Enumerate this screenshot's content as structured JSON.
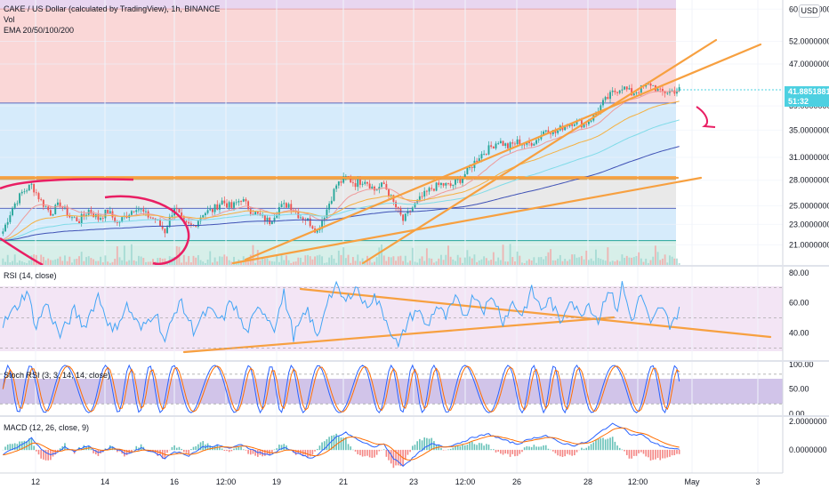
{
  "legend": {
    "title": "CAKE / US Dollar (calculated by TradingView), 1h, BINANCE",
    "vol": "Vol",
    "ema": "EMA 20/50/100/200",
    "rsi": "RSI (14, close)",
    "stoch": "Stoch RSI (3, 3, 14, 14, close)",
    "macd": "MACD (12, 26, close, 9)"
  },
  "currency": "USD",
  "last_price": {
    "value": "41.8851881",
    "countdown": "51:32"
  },
  "colors": {
    "up": "#26a69a",
    "down": "#ef5350",
    "trend": "#f7a040",
    "ema20": "#ef9a9a",
    "ema50": "#f5b041",
    "ema100": "#7fdbe8",
    "ema200": "#3f51b5",
    "rsi": "#42a5f5",
    "stoch_k": "#2962ff",
    "stoch_d": "#ff6d00",
    "macd": "#2962ff",
    "signal": "#ff6d00",
    "zone_red": "#fad7d7",
    "zone_blue": "#d6ebfb",
    "zone_grey": "#e9e9e9",
    "zone_purple": "#e8d6f0",
    "band_rsi": "#f3e5f5",
    "band_stoch": "#d1c4e9",
    "drawing_red": "#e91e63"
  },
  "chart_data": [
    {
      "type": "candlestick",
      "pane": "price",
      "y_ticks": [
        "60.0000000",
        "52.0000000",
        "47.0000000",
        "39.0000000",
        "35.0000000",
        "31.0000000",
        "28.0000000",
        "25.0000000",
        "23.0000000",
        "21.0000000"
      ],
      "y_tick_values": [
        60,
        52,
        47,
        39,
        35,
        31,
        28,
        25,
        23,
        21
      ],
      "scale": "log",
      "ylim": [
        19.2,
        62.5
      ],
      "x_ticks": [
        "12",
        "14",
        "16",
        "12:00",
        "19",
        "21",
        "23",
        "12:00",
        "26",
        "28",
        "12:00",
        "May",
        "3"
      ],
      "series": [
        {
          "name": "EMA 20"
        },
        {
          "name": "EMA 50"
        },
        {
          "name": "EMA 100"
        },
        {
          "name": "EMA 200"
        }
      ],
      "closes_anchor": [
        [
          0,
          22.3
        ],
        [
          4,
          24.8
        ],
        [
          8,
          26.5
        ],
        [
          12,
          27.4
        ],
        [
          16,
          25.5
        ],
        [
          20,
          24.2
        ],
        [
          24,
          25.2
        ],
        [
          28,
          23.8
        ],
        [
          32,
          23.4
        ],
        [
          36,
          24.5
        ],
        [
          40,
          23.6
        ],
        [
          44,
          24.4
        ],
        [
          48,
          23.1
        ],
        [
          52,
          24.0
        ],
        [
          56,
          24.9
        ],
        [
          60,
          24.0
        ],
        [
          64,
          23.5
        ],
        [
          68,
          22.3
        ],
        [
          72,
          24.9
        ],
        [
          76,
          23.0
        ],
        [
          80,
          22.8
        ],
        [
          84,
          24.2
        ],
        [
          88,
          24.5
        ],
        [
          92,
          25.5
        ],
        [
          96,
          24.8
        ],
        [
          100,
          25.8
        ],
        [
          104,
          24.5
        ],
        [
          108,
          23.8
        ],
        [
          112,
          23.3
        ],
        [
          116,
          24.8
        ],
        [
          120,
          25.2
        ],
        [
          124,
          24.0
        ],
        [
          128,
          23.4
        ],
        [
          132,
          22.3
        ],
        [
          136,
          24.6
        ],
        [
          140,
          27.4
        ],
        [
          144,
          28.3
        ],
        [
          148,
          27.6
        ],
        [
          152,
          28.1
        ],
        [
          156,
          26.8
        ],
        [
          160,
          27.5
        ],
        [
          164,
          25.3
        ],
        [
          168,
          23.4
        ],
        [
          172,
          24.8
        ],
        [
          176,
          26.0
        ],
        [
          180,
          27.0
        ],
        [
          184,
          27.5
        ],
        [
          188,
          27.3
        ],
        [
          192,
          28.1
        ],
        [
          196,
          29.5
        ],
        [
          200,
          31.2
        ],
        [
          204,
          32.2
        ],
        [
          208,
          33.4
        ],
        [
          212,
          32.5
        ],
        [
          216,
          33.2
        ],
        [
          220,
          32.8
        ],
        [
          224,
          33.5
        ],
        [
          228,
          35.2
        ],
        [
          232,
          34.6
        ],
        [
          236,
          35.8
        ],
        [
          240,
          36.4
        ],
        [
          244,
          35.9
        ],
        [
          248,
          37.2
        ],
        [
          252,
          39.5
        ],
        [
          256,
          41.3
        ],
        [
          260,
          42.5
        ],
        [
          264,
          41.2
        ],
        [
          268,
          42.1
        ],
        [
          272,
          43.0
        ],
        [
          276,
          41.4
        ],
        [
          280,
          41.6
        ],
        [
          284,
          41.9
        ]
      ]
    },
    {
      "type": "bar",
      "pane": "volume",
      "series": [
        {
          "name": "Vol"
        }
      ]
    },
    {
      "type": "line",
      "pane": "rsi",
      "y_ticks": [
        "80.00",
        "60.00",
        "40.00"
      ],
      "y_tick_values": [
        80,
        60,
        40
      ],
      "ylim": [
        22,
        84
      ],
      "bands": [
        30,
        70
      ],
      "series": [
        {
          "name": "RSI"
        }
      ],
      "anchor": [
        [
          0,
          46
        ],
        [
          6,
          58
        ],
        [
          10,
          68
        ],
        [
          14,
          44
        ],
        [
          18,
          60
        ],
        [
          24,
          38
        ],
        [
          30,
          55
        ],
        [
          34,
          44
        ],
        [
          40,
          65
        ],
        [
          46,
          40
        ],
        [
          52,
          58
        ],
        [
          58,
          42
        ],
        [
          64,
          55
        ],
        [
          68,
          34
        ],
        [
          74,
          62
        ],
        [
          80,
          42
        ],
        [
          86,
          55
        ],
        [
          92,
          48
        ],
        [
          96,
          62
        ],
        [
          102,
          40
        ],
        [
          108,
          58
        ],
        [
          114,
          44
        ],
        [
          118,
          66
        ],
        [
          122,
          38
        ],
        [
          128,
          55
        ],
        [
          132,
          36
        ],
        [
          136,
          62
        ],
        [
          140,
          70
        ],
        [
          144,
          60
        ],
        [
          148,
          72
        ],
        [
          152,
          58
        ],
        [
          156,
          64
        ],
        [
          160,
          52
        ],
        [
          164,
          38
        ],
        [
          166,
          30
        ],
        [
          170,
          48
        ],
        [
          174,
          56
        ],
        [
          178,
          44
        ],
        [
          182,
          58
        ],
        [
          186,
          50
        ],
        [
          190,
          62
        ],
        [
          194,
          52
        ],
        [
          198,
          66
        ],
        [
          202,
          56
        ],
        [
          206,
          64
        ],
        [
          210,
          48
        ],
        [
          214,
          60
        ],
        [
          218,
          52
        ],
        [
          222,
          68
        ],
        [
          226,
          56
        ],
        [
          230,
          62
        ],
        [
          234,
          46
        ],
        [
          238,
          64
        ],
        [
          242,
          52
        ],
        [
          246,
          60
        ],
        [
          250,
          48
        ],
        [
          254,
          70
        ],
        [
          258,
          56
        ],
        [
          260,
          72
        ],
        [
          264,
          48
        ],
        [
          268,
          66
        ],
        [
          272,
          44
        ],
        [
          276,
          58
        ],
        [
          280,
          46
        ],
        [
          284,
          54
        ]
      ]
    },
    {
      "type": "line",
      "pane": "stoch_rsi",
      "y_ticks": [
        "100.00",
        "50.00",
        "0.00"
      ],
      "y_tick_values": [
        100,
        50,
        0
      ],
      "ylim": [
        -3,
        105
      ],
      "bands": [
        20,
        80
      ],
      "series": [
        {
          "name": "K"
        },
        {
          "name": "D"
        }
      ]
    },
    {
      "type": "line",
      "pane": "macd",
      "y_ticks": [
        "2.0000000",
        "0.0000000"
      ],
      "y_tick_values": [
        2,
        0
      ],
      "ylim": [
        -1.5,
        2.3
      ],
      "series": [
        {
          "name": "MACD"
        },
        {
          "name": "Signal"
        },
        {
          "name": "Histogram"
        }
      ],
      "anchor": [
        [
          0,
          -0.3
        ],
        [
          6,
          0.2
        ],
        [
          12,
          0.8
        ],
        [
          16,
          0.1
        ],
        [
          20,
          -0.4
        ],
        [
          26,
          0.2
        ],
        [
          30,
          -0.1
        ],
        [
          36,
          0.3
        ],
        [
          40,
          -0.2
        ],
        [
          46,
          0.2
        ],
        [
          52,
          -0.3
        ],
        [
          58,
          0.1
        ],
        [
          64,
          -0.2
        ],
        [
          68,
          -0.6
        ],
        [
          72,
          -0.1
        ],
        [
          78,
          -0.4
        ],
        [
          84,
          0.2
        ],
        [
          90,
          0.3
        ],
        [
          96,
          0.1
        ],
        [
          100,
          0.4
        ],
        [
          106,
          -0.1
        ],
        [
          112,
          -0.4
        ],
        [
          118,
          0.2
        ],
        [
          124,
          -0.3
        ],
        [
          130,
          -0.6
        ],
        [
          136,
          0.2
        ],
        [
          140,
          0.9
        ],
        [
          144,
          1.2
        ],
        [
          150,
          0.6
        ],
        [
          156,
          0.2
        ],
        [
          160,
          0.4
        ],
        [
          164,
          -0.6
        ],
        [
          168,
          -1.1
        ],
        [
          172,
          -0.6
        ],
        [
          176,
          0.0
        ],
        [
          180,
          0.4
        ],
        [
          186,
          0.2
        ],
        [
          192,
          0.5
        ],
        [
          198,
          0.9
        ],
        [
          204,
          1.1
        ],
        [
          210,
          0.7
        ],
        [
          216,
          0.4
        ],
        [
          222,
          0.8
        ],
        [
          228,
          1.0
        ],
        [
          234,
          0.5
        ],
        [
          240,
          0.3
        ],
        [
          246,
          0.6
        ],
        [
          252,
          1.4
        ],
        [
          256,
          1.8
        ],
        [
          260,
          1.6
        ],
        [
          264,
          1.0
        ],
        [
          268,
          1.1
        ],
        [
          272,
          0.6
        ],
        [
          276,
          0.3
        ],
        [
          280,
          0.1
        ],
        [
          284,
          0.0
        ]
      ]
    }
  ]
}
